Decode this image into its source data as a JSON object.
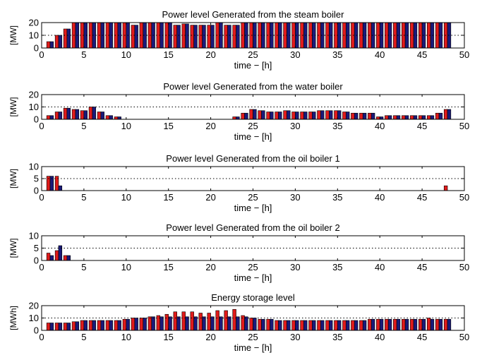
{
  "figure": {
    "colors": {
      "series_a": "#e01b1b",
      "series_b": "#1a1a7a",
      "edge": "#000000"
    },
    "xlim": [
      0,
      50
    ],
    "xticks": [
      "0",
      "5",
      "10",
      "15",
      "20",
      "25",
      "30",
      "35",
      "40",
      "45",
      "50"
    ]
  },
  "chart_data": [
    {
      "type": "bar",
      "title": "Power level Generated from the steam boiler",
      "xlabel": "time − [h]",
      "ylabel": "[MW]",
      "ylim": [
        0,
        20
      ],
      "yticks": [
        "0",
        "10",
        "20"
      ],
      "dotted_line": 10,
      "x": [
        1,
        2,
        3,
        4,
        5,
        6,
        7,
        8,
        9,
        10,
        11,
        12,
        13,
        14,
        15,
        16,
        17,
        18,
        19,
        20,
        21,
        22,
        23,
        24,
        25,
        26,
        27,
        28,
        29,
        30,
        31,
        32,
        33,
        34,
        35,
        36,
        37,
        38,
        39,
        40,
        41,
        42,
        43,
        44,
        45,
        46,
        47,
        48
      ],
      "series": [
        {
          "values": [
            5,
            10,
            15,
            20,
            20,
            20,
            20,
            20,
            20,
            20,
            18,
            20,
            20,
            20,
            20,
            18,
            19,
            18,
            18,
            18,
            20,
            18,
            18,
            20,
            20,
            20,
            20,
            20,
            20,
            20,
            20,
            20,
            20,
            20,
            20,
            20,
            20,
            20,
            20,
            20,
            20,
            20,
            20,
            20,
            20,
            20,
            20,
            20
          ]
        },
        {
          "values": [
            5,
            10,
            15,
            20,
            20,
            20,
            20,
            20,
            20,
            20,
            18,
            20,
            20,
            20,
            20,
            18,
            19,
            18,
            18,
            18,
            20,
            18,
            18,
            20,
            20,
            20,
            20,
            20,
            20,
            20,
            20,
            20,
            20,
            20,
            20,
            20,
            20,
            20,
            20,
            20,
            20,
            20,
            20,
            20,
            20,
            20,
            20,
            20
          ]
        }
      ]
    },
    {
      "type": "bar",
      "title": "Power level Generated from the water boiler",
      "xlabel": "time − [h]",
      "ylabel": "[MW]",
      "ylim": [
        0,
        20
      ],
      "yticks": [
        "0",
        "10",
        "20"
      ],
      "dotted_line": 10,
      "x": [
        1,
        2,
        3,
        4,
        5,
        6,
        7,
        8,
        9,
        10,
        11,
        12,
        13,
        14,
        15,
        16,
        17,
        18,
        19,
        20,
        21,
        22,
        23,
        24,
        25,
        26,
        27,
        28,
        29,
        30,
        31,
        32,
        33,
        34,
        35,
        36,
        37,
        38,
        39,
        40,
        41,
        42,
        43,
        44,
        45,
        46,
        47,
        48
      ],
      "series": [
        {
          "values": [
            3,
            6,
            9,
            8,
            7,
            10,
            6,
            3,
            2,
            0,
            0,
            0,
            0,
            0,
            0,
            0,
            0,
            0,
            0,
            0,
            0,
            0,
            2,
            5,
            8,
            7,
            6,
            6,
            7,
            6,
            6,
            6,
            7,
            7,
            7,
            6,
            5,
            5,
            5,
            2,
            3,
            3,
            3,
            3,
            3,
            3,
            5,
            8
          ]
        },
        {
          "values": [
            3,
            6,
            9,
            8,
            7,
            10,
            6,
            3,
            2,
            0,
            0,
            0,
            0,
            0,
            0,
            0,
            0,
            0,
            0,
            0,
            0,
            0,
            2,
            5,
            8,
            7,
            6,
            6,
            7,
            6,
            6,
            6,
            7,
            7,
            7,
            6,
            5,
            5,
            5,
            2,
            3,
            3,
            3,
            3,
            3,
            3,
            5,
            8
          ]
        }
      ]
    },
    {
      "type": "bar",
      "title": "Power level Generated from the oil boiler 1",
      "xlabel": "time − [h]",
      "ylabel": "[MW]",
      "ylim": [
        0,
        10
      ],
      "yticks": [
        "0",
        "5",
        "10"
      ],
      "dotted_line": 5,
      "x": [
        1,
        2,
        48
      ],
      "series": [
        {
          "values": [
            6,
            6,
            2
          ]
        },
        {
          "values": [
            6,
            2,
            0
          ]
        }
      ]
    },
    {
      "type": "bar",
      "title": "Power level Generated from the oil boiler 2",
      "xlabel": "time − [h]",
      "ylabel": "[MW]",
      "ylim": [
        0,
        10
      ],
      "yticks": [
        "0",
        "5",
        "10"
      ],
      "dotted_line": 5,
      "x": [
        1,
        2,
        3
      ],
      "series": [
        {
          "values": [
            3,
            4,
            2
          ]
        },
        {
          "values": [
            2,
            6,
            2
          ]
        }
      ]
    },
    {
      "type": "bar",
      "title": "Energy storage level",
      "xlabel": "time − [h]",
      "ylabel": "[MWh]",
      "ylim": [
        0,
        20
      ],
      "yticks": [
        "0",
        "10",
        "20"
      ],
      "dotted_line": 10,
      "x": [
        1,
        2,
        3,
        4,
        5,
        6,
        7,
        8,
        9,
        10,
        11,
        12,
        13,
        14,
        15,
        16,
        17,
        18,
        19,
        20,
        21,
        22,
        23,
        24,
        25,
        26,
        27,
        28,
        29,
        30,
        31,
        32,
        33,
        34,
        35,
        36,
        37,
        38,
        39,
        40,
        41,
        42,
        43,
        44,
        45,
        46,
        47,
        48
      ],
      "series": [
        {
          "values": [
            6,
            6,
            6,
            7,
            8,
            8,
            8,
            8,
            8,
            9,
            10,
            10,
            11,
            12,
            13,
            15,
            15,
            15,
            14,
            14,
            16,
            16,
            17,
            12,
            10,
            9,
            9,
            8,
            8,
            8,
            8,
            8,
            8,
            8,
            8,
            8,
            8,
            8,
            9,
            9,
            9,
            9,
            9,
            9,
            9,
            10,
            9,
            9
          ]
        },
        {
          "values": [
            6,
            6,
            6,
            7,
            8,
            8,
            8,
            8,
            8,
            9,
            10,
            10,
            11,
            11,
            11,
            11,
            11,
            11,
            11,
            11,
            11,
            11,
            11,
            11,
            10,
            9,
            9,
            8,
            8,
            8,
            8,
            8,
            8,
            8,
            8,
            8,
            8,
            8,
            9,
            9,
            9,
            9,
            9,
            9,
            9,
            9,
            9,
            9
          ]
        }
      ]
    }
  ]
}
